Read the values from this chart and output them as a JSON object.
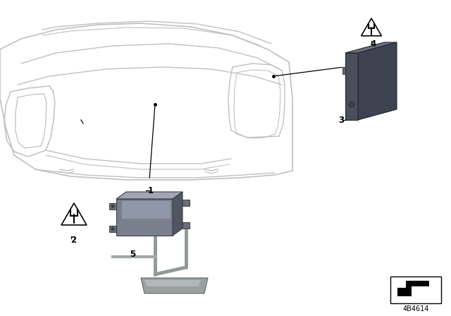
{
  "bg_color": "#ffffff",
  "part_number": "4B4614",
  "label_color": "#000000",
  "car_color": "#cccccc",
  "box1_face": "#7a7f8e",
  "box1_top": "#9da3b0",
  "box1_right": "#555a65",
  "box3_face": "#4a4f5a",
  "box3_top": "#7a7f8e",
  "box3_right": "#333840",
  "bracket_color": "#888e8e",
  "base_color": "#9a9f9f",
  "warning_outline": "#000000",
  "warning_fill": "#ffffff",
  "bolt_color": "#000000"
}
